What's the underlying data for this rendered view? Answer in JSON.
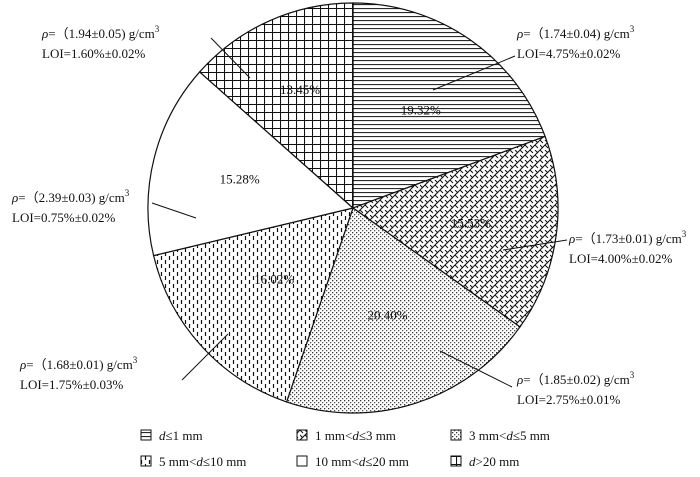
{
  "chart_data": {
    "type": "pie",
    "start_position": "top-center",
    "direction": "clockwise",
    "legend_placement": "bottom",
    "slices": [
      {
        "label_html": "d≤1 mm",
        "label_italic_part": "d",
        "label": "d≤1 mm",
        "value": 19.32,
        "value_label": "19.32%",
        "pattern": "horizontal-lines",
        "annotation": {
          "rho": "ρ=（1.74±0.04) g/cm",
          "sup": "3",
          "loi": "LOI=4.75%±0.02%"
        }
      },
      {
        "label": "1 mm<d≤3 mm",
        "value": 15.53,
        "value_label": "15.53%",
        "pattern": "brick",
        "annotation": {
          "rho": "ρ=（1.73±0.01) g/cm",
          "sup": "3",
          "loi": "LOI=4.00%±0.02%"
        }
      },
      {
        "label": "3 mm<d≤5 mm",
        "value": 20.4,
        "value_label": "20.40%",
        "pattern": "dots",
        "annotation": {
          "rho": "ρ=（1.85±0.02) g/cm",
          "sup": "3",
          "loi": "LOI=2.75%±0.01%"
        }
      },
      {
        "label": "5 mm<d≤10 mm",
        "value": 16.02,
        "value_label": "16.02%",
        "pattern": "dashed-vertical",
        "annotation": {
          "rho": "ρ=（1.68±0.01) g/cm",
          "sup": "3",
          "loi": "LOI=1.75%±0.03%"
        }
      },
      {
        "label": "10 mm<d≤20 mm",
        "value": 15.28,
        "value_label": "15.28%",
        "pattern": "blank",
        "annotation": {
          "rho": "ρ=（2.39±0.03) g/cm",
          "sup": "3",
          "loi": "LOI=0.75%±0.02%"
        }
      },
      {
        "label": "d>20 mm",
        "value": 13.45,
        "value_label": "13.45%",
        "pattern": "grid",
        "annotation": {
          "rho": "ρ=（1.94±0.05) g/cm",
          "sup": "3",
          "loi": "LOI=1.60%±0.02%"
        }
      }
    ],
    "legend": [
      {
        "label": "d≤1 mm",
        "pattern": "horizontal-lines"
      },
      {
        "label": "1 mm<d≤3 mm",
        "pattern": "brick"
      },
      {
        "label": "3 mm<d≤5 mm",
        "pattern": "dots"
      },
      {
        "label": "5 mm<d≤10 mm",
        "pattern": "dashed-vertical"
      },
      {
        "label": "10 mm<d≤20 mm",
        "pattern": "blank"
      },
      {
        "label": "d>20 mm",
        "pattern": "grid"
      }
    ]
  }
}
